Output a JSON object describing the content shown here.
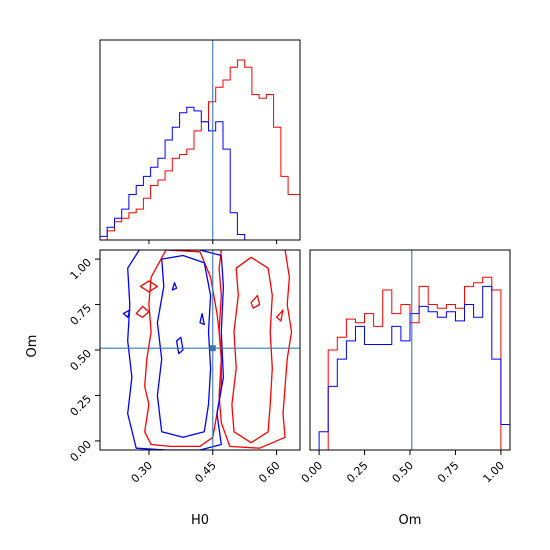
{
  "chart_data": {
    "type": "corner",
    "parameters": [
      "H0",
      "Om"
    ],
    "colors": {
      "model_a": "#ff0000",
      "model_b": "#0000ff",
      "truth": "#3b78b0"
    },
    "truth": {
      "H0": 0.45,
      "Om": 0.51
    },
    "x_ranges": {
      "H0": [
        0.185,
        0.655
      ],
      "Om": [
        -0.05,
        1.05
      ]
    },
    "x_ticks": {
      "H0": {
        "values": [
          0.3,
          0.45,
          0.6
        ],
        "labels": [
          "0.30",
          "0.45",
          "0.60"
        ]
      },
      "Om": {
        "values": [
          0.0,
          0.25,
          0.5,
          0.75,
          1.0
        ],
        "labels": [
          "0.00",
          "0.25",
          "0.50",
          "0.75",
          "1.00"
        ]
      }
    },
    "y_ticks": {
      "Om": {
        "values": [
          0.0,
          0.25,
          0.5,
          0.75,
          1.0
        ],
        "labels": [
          "0.00",
          "0.25",
          "0.50",
          "0.75",
          "1.00"
        ]
      }
    },
    "xlabels": {
      "H0": "H0",
      "Om": "Om"
    },
    "ylabel": "Om",
    "hist_H0": {
      "edges": [
        0.185,
        0.202,
        0.219,
        0.236,
        0.253,
        0.27,
        0.287,
        0.304,
        0.321,
        0.338,
        0.355,
        0.372,
        0.389,
        0.406,
        0.423,
        0.44,
        0.457,
        0.474,
        0.491,
        0.508,
        0.525,
        0.542,
        0.559,
        0.576,
        0.593,
        0.61,
        0.627,
        0.644,
        0.661
      ],
      "red": [
        0.0,
        0.05,
        0.1,
        0.12,
        0.15,
        0.17,
        0.23,
        0.3,
        0.33,
        0.38,
        0.45,
        0.47,
        0.5,
        0.6,
        0.65,
        0.76,
        0.84,
        0.88,
        0.95,
        0.99,
        0.95,
        0.8,
        0.78,
        0.8,
        0.62,
        0.35,
        0.25,
        0.25
      ],
      "blue": [
        0.02,
        0.07,
        0.12,
        0.17,
        0.25,
        0.3,
        0.35,
        0.4,
        0.45,
        0.55,
        0.62,
        0.7,
        0.73,
        0.71,
        0.65,
        0.6,
        0.65,
        0.5,
        0.15,
        0.03,
        0.0,
        0.0,
        0.0,
        0.0,
        0.0,
        0.0,
        0.0,
        0.0
      ]
    },
    "hist_Om": {
      "edges": [
        -0.05,
        0.0,
        0.05,
        0.1,
        0.15,
        0.2,
        0.25,
        0.3,
        0.35,
        0.4,
        0.45,
        0.5,
        0.55,
        0.6,
        0.65,
        0.7,
        0.75,
        0.8,
        0.85,
        0.9,
        0.95,
        1.0,
        1.05
      ],
      "red": [
        0.0,
        0.0,
        0.55,
        0.62,
        0.72,
        0.7,
        0.75,
        0.68,
        0.88,
        0.75,
        0.8,
        0.7,
        0.9,
        0.8,
        0.78,
        0.8,
        0.78,
        0.9,
        0.92,
        0.95,
        0.88,
        0.0
      ],
      "blue": [
        0.0,
        0.1,
        0.35,
        0.5,
        0.6,
        0.68,
        0.58,
        0.58,
        0.58,
        0.68,
        0.6,
        0.75,
        0.79,
        0.76,
        0.73,
        0.76,
        0.71,
        0.8,
        0.73,
        0.9,
        0.5,
        0.14
      ]
    },
    "contours": {
      "red": [
        [
          [
            0.305,
            -0.02
          ],
          [
            0.29,
            0.05
          ],
          [
            0.3,
            0.2
          ],
          [
            0.29,
            0.3
          ],
          [
            0.295,
            0.45
          ],
          [
            0.305,
            0.6
          ],
          [
            0.3,
            0.75
          ],
          [
            0.305,
            0.9
          ],
          [
            0.34,
            1.05
          ],
          [
            0.42,
            1.04
          ],
          [
            0.445,
            0.9
          ],
          [
            0.46,
            0.7
          ],
          [
            0.47,
            0.5
          ],
          [
            0.47,
            0.3
          ],
          [
            0.46,
            0.15
          ],
          [
            0.45,
            0.02
          ],
          [
            0.42,
            -0.03
          ],
          [
            0.35,
            -0.03
          ]
        ],
        [
          [
            0.47,
            1.05
          ],
          [
            0.53,
            1.06
          ],
          [
            0.62,
            1.05
          ],
          [
            0.63,
            0.9
          ],
          [
            0.625,
            0.75
          ],
          [
            0.635,
            0.6
          ],
          [
            0.625,
            0.45
          ],
          [
            0.62,
            0.3
          ],
          [
            0.615,
            0.15
          ],
          [
            0.62,
            0.02
          ],
          [
            0.56,
            -0.04
          ],
          [
            0.49,
            -0.03
          ],
          [
            0.47,
            0.1
          ],
          [
            0.465,
            0.25
          ],
          [
            0.47,
            0.45
          ],
          [
            0.465,
            0.6
          ],
          [
            0.47,
            0.8
          ],
          [
            0.465,
            0.95
          ]
        ],
        [
          [
            0.5,
            0.05
          ],
          [
            0.495,
            0.2
          ],
          [
            0.505,
            0.4
          ],
          [
            0.5,
            0.6
          ],
          [
            0.51,
            0.8
          ],
          [
            0.505,
            0.95
          ],
          [
            0.54,
            1.01
          ],
          [
            0.58,
            0.95
          ],
          [
            0.59,
            0.8
          ],
          [
            0.585,
            0.6
          ],
          [
            0.59,
            0.4
          ],
          [
            0.585,
            0.2
          ],
          [
            0.58,
            0.05
          ],
          [
            0.54,
            -0.01
          ]
        ],
        [
          [
            0.27,
            0.7
          ],
          [
            0.285,
            0.74
          ],
          [
            0.3,
            0.71
          ],
          [
            0.285,
            0.68
          ]
        ],
        [
          [
            0.28,
            0.85
          ],
          [
            0.3,
            0.88
          ],
          [
            0.32,
            0.85
          ],
          [
            0.3,
            0.82
          ]
        ],
        [
          [
            0.6,
            0.68
          ],
          [
            0.615,
            0.72
          ],
          [
            0.61,
            0.66
          ]
        ],
        [
          [
            0.54,
            0.76
          ],
          [
            0.555,
            0.8
          ],
          [
            0.56,
            0.75
          ],
          [
            0.545,
            0.73
          ]
        ]
      ],
      "blue": [
        [
          [
            0.27,
            -0.04
          ],
          [
            0.25,
            0.15
          ],
          [
            0.26,
            0.35
          ],
          [
            0.25,
            0.55
          ],
          [
            0.255,
            0.75
          ],
          [
            0.25,
            0.95
          ],
          [
            0.28,
            1.06
          ],
          [
            0.35,
            1.05
          ],
          [
            0.42,
            1.05
          ],
          [
            0.47,
            1.02
          ],
          [
            0.475,
            0.85
          ],
          [
            0.47,
            0.6
          ],
          [
            0.475,
            0.35
          ],
          [
            0.46,
            0.15
          ],
          [
            0.47,
            -0.02
          ],
          [
            0.42,
            -0.05
          ],
          [
            0.34,
            -0.05
          ]
        ],
        [
          [
            0.33,
            0.05
          ],
          [
            0.32,
            0.25
          ],
          [
            0.33,
            0.45
          ],
          [
            0.32,
            0.65
          ],
          [
            0.335,
            0.85
          ],
          [
            0.33,
            1.0
          ],
          [
            0.38,
            1.02
          ],
          [
            0.43,
            0.98
          ],
          [
            0.445,
            0.8
          ],
          [
            0.44,
            0.6
          ],
          [
            0.445,
            0.4
          ],
          [
            0.44,
            0.2
          ],
          [
            0.43,
            0.05
          ],
          [
            0.38,
            0.02
          ]
        ],
        [
          [
            0.37,
            0.48
          ],
          [
            0.365,
            0.55
          ],
          [
            0.375,
            0.57
          ],
          [
            0.38,
            0.5
          ]
        ],
        [
          [
            0.355,
            0.83
          ],
          [
            0.36,
            0.87
          ],
          [
            0.365,
            0.84
          ]
        ],
        [
          [
            0.42,
            0.65
          ],
          [
            0.425,
            0.7
          ],
          [
            0.43,
            0.64
          ]
        ],
        [
          [
            0.24,
            0.7
          ],
          [
            0.255,
            0.72
          ],
          [
            0.25,
            0.68
          ]
        ]
      ]
    }
  }
}
